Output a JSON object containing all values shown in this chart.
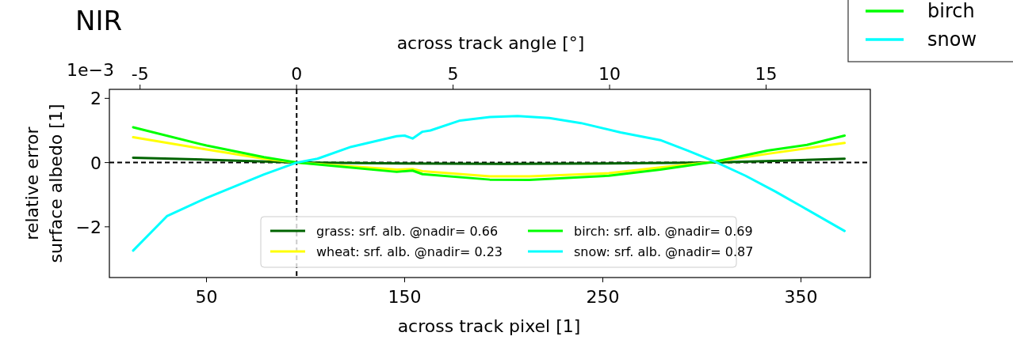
{
  "chart_data": {
    "type": "line",
    "title": "NIR",
    "xlabel": "across track pixel [1]",
    "x2label": "across track angle [°]",
    "ylabel": "relative error\nsurface albedo [1]",
    "xlim": [
      1,
      385
    ],
    "xticks": [
      50,
      150,
      250,
      350
    ],
    "x2lim": [
      -5.98,
      18.33
    ],
    "x2ticks": [
      -5,
      0,
      5,
      10,
      15
    ],
    "ylim": [
      -3.58,
      2.28
    ],
    "yticks": [
      -2,
      0,
      2
    ],
    "legend": "bottom",
    "grid": false,
    "annotations": [
      "1e−3",
      "birch",
      "snow"
    ],
    "ref_lines": [
      {
        "axis": "x",
        "value": 95.5,
        "color": "#000000",
        "line_style": "dashed"
      },
      {
        "axis": "y",
        "value": 0,
        "color": "#000000",
        "line_style": "dashed"
      }
    ],
    "series": [
      {
        "name": "grass: srf. alb. @nadir= 0.66",
        "color": "#006400",
        "x": [
          13,
          50,
          95.5,
          150,
          200,
          250,
          306,
          340,
          372
        ],
        "values": [
          0.15,
          0.09,
          0,
          -0.03,
          -0.04,
          -0.03,
          0,
          0.06,
          0.12
        ]
      },
      {
        "name": "wheat: srf. alb. @nadir= 0.23",
        "color": "#ffff00",
        "x": [
          13,
          50,
          79,
          95.5,
          146,
          154,
          159,
          193,
          213,
          253,
          279,
          306,
          333,
          372
        ],
        "values": [
          0.79,
          0.41,
          0.12,
          0,
          -0.22,
          -0.2,
          -0.27,
          -0.43,
          -0.43,
          -0.33,
          -0.15,
          0.02,
          0.27,
          0.61
        ]
      },
      {
        "name": "birch: srf. alb. @nadir= 0.69",
        "color": "#00ff00",
        "x": [
          13,
          50,
          79,
          95.5,
          146,
          154,
          159,
          193,
          213,
          253,
          279,
          306,
          333,
          353,
          372
        ],
        "values": [
          1.1,
          0.53,
          0.17,
          0,
          -0.29,
          -0.25,
          -0.36,
          -0.53,
          -0.54,
          -0.41,
          -0.22,
          0.02,
          0.37,
          0.55,
          0.84
        ]
      },
      {
        "name": "snow: srf. alb. @nadir= 0.87",
        "color": "#00ffff",
        "x": [
          13,
          30,
          50,
          79,
          95.5,
          106,
          123,
          146,
          150,
          154,
          159,
          163,
          178,
          193,
          207,
          223,
          239,
          259,
          279,
          293,
          307,
          322,
          337,
          351,
          372
        ],
        "values": [
          -2.74,
          -1.67,
          -1.1,
          -0.37,
          0,
          0.12,
          0.49,
          0.82,
          0.84,
          0.75,
          0.96,
          1.0,
          1.31,
          1.42,
          1.45,
          1.39,
          1.23,
          0.94,
          0.7,
          0.37,
          0.02,
          -0.41,
          -0.9,
          -1.39,
          -2.13
        ]
      }
    ]
  }
}
